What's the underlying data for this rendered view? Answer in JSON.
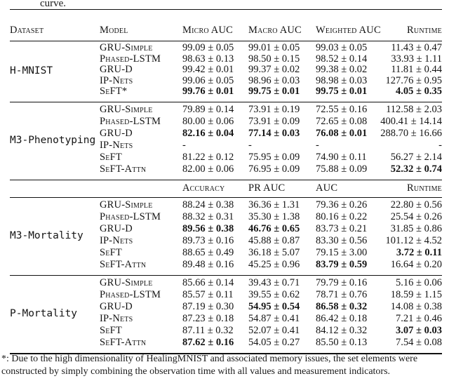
{
  "caption_fragment": "curve.",
  "table": {
    "columns_part1": [
      "Dataset",
      "Model",
      "Micro AUC",
      "Macro AUC",
      "Weighted AUC",
      "Runtime"
    ],
    "columns_part2": [
      "",
      "",
      "Accuracy",
      "PR AUC",
      "AUC",
      "Runtime"
    ],
    "blocks": [
      {
        "dataset": "H-MNIST",
        "rows": [
          {
            "model": "GRU-Simple",
            "values": [
              "99.09 ± 0.05",
              "99.01 ± 0.05",
              "99.03 ± 0.05",
              "11.43 ± 0.47"
            ],
            "bold": []
          },
          {
            "model": "Phased-LSTM",
            "values": [
              "98.63 ± 0.13",
              "98.50 ± 0.15",
              "98.52 ± 0.14",
              "33.93 ± 1.11"
            ],
            "bold": []
          },
          {
            "model": "GRU-D",
            "values": [
              "99.42 ± 0.01",
              "99.37 ± 0.02",
              "99.38 ± 0.02",
              "11.81 ± 0.44"
            ],
            "bold": []
          },
          {
            "model": "IP-Nets",
            "values": [
              "99.06 ± 0.05",
              "98.96 ± 0.03",
              "98.98 ± 0.03",
              "127.76 ± 0.95"
            ],
            "bold": []
          },
          {
            "model": "SeFT*",
            "values": [
              "99.76 ± 0.01",
              "99.75 ± 0.01",
              "99.75 ± 0.01",
              "4.05 ± 0.35"
            ],
            "bold": [
              0,
              1,
              2,
              3
            ]
          }
        ]
      },
      {
        "dataset": "M3-Phenotyping",
        "rows": [
          {
            "model": "GRU-Simple",
            "values": [
              "79.89 ± 0.14",
              "73.91 ± 0.19",
              "72.55 ± 0.16",
              "112.58 ± 2.03"
            ],
            "bold": []
          },
          {
            "model": "Phased-LSTM",
            "values": [
              "80.00 ± 0.06",
              "73.91 ± 0.09",
              "72.65 ± 0.08",
              "400.41 ± 14.14"
            ],
            "bold": []
          },
          {
            "model": "GRU-D",
            "values": [
              "82.16 ± 0.04",
              "77.14 ± 0.03",
              "76.08 ± 0.01",
              "288.70 ± 16.66"
            ],
            "bold": [
              0,
              1,
              2
            ]
          },
          {
            "model": "IP-Nets",
            "values": [
              "-",
              "-",
              "-",
              "-"
            ],
            "bold": []
          },
          {
            "model": "SeFT",
            "values": [
              "81.22 ± 0.12",
              "75.95 ± 0.09",
              "74.90 ± 0.11",
              "56.27 ± 2.14"
            ],
            "bold": []
          },
          {
            "model": "SeFT-Attn",
            "values": [
              "82.00 ± 0.06",
              "76.95 ± 0.09",
              "75.88 ± 0.09",
              "52.32 ± 0.74"
            ],
            "bold": [
              3
            ]
          }
        ]
      },
      {
        "dataset": "M3-Mortality",
        "rows": [
          {
            "model": "GRU-Simple",
            "values": [
              "88.24 ± 0.38",
              "36.36 ± 1.31",
              "79.36 ± 0.26",
              "22.80 ± 0.56"
            ],
            "bold": []
          },
          {
            "model": "Phased-LSTM",
            "values": [
              "88.32 ± 0.31",
              "35.30 ± 1.38",
              "80.16 ± 0.22",
              "25.54 ± 0.26"
            ],
            "bold": []
          },
          {
            "model": "GRU-D",
            "values": [
              "89.56 ± 0.38",
              "46.76 ± 0.65",
              "83.73 ± 0.21",
              "31.85 ± 0.86"
            ],
            "bold": [
              0,
              1
            ]
          },
          {
            "model": "IP-Nets",
            "values": [
              "89.73 ± 0.16",
              "45.88 ± 0.87",
              "83.30 ± 0.56",
              "101.12 ± 4.52"
            ],
            "bold": []
          },
          {
            "model": "SeFT",
            "values": [
              "88.65 ± 0.49",
              "36.18 ± 5.07",
              "79.15 ± 3.00",
              "3.72 ± 0.11"
            ],
            "bold": [
              3
            ]
          },
          {
            "model": "SeFT-Attn",
            "values": [
              "89.48 ± 0.16",
              "45.25 ± 0.96",
              "83.79 ± 0.59",
              "16.64 ± 0.20"
            ],
            "bold": [
              2
            ]
          }
        ]
      },
      {
        "dataset": "P-Mortality",
        "rows": [
          {
            "model": "GRU-Simple",
            "values": [
              "85.66 ± 0.14",
              "39.43 ± 0.71",
              "79.79 ± 0.16",
              "5.16 ± 0.06"
            ],
            "bold": []
          },
          {
            "model": "Phased-LSTM",
            "values": [
              "85.57 ± 0.11",
              "39.55 ± 0.62",
              "78.71 ± 0.76",
              "18.59 ± 1.15"
            ],
            "bold": []
          },
          {
            "model": "GRU-D",
            "values": [
              "87.19 ± 0.30",
              "54.95 ± 0.54",
              "86.58 ± 0.32",
              "14.08 ± 0.38"
            ],
            "bold": [
              1,
              2
            ]
          },
          {
            "model": "IP-Nets",
            "values": [
              "87.23 ± 0.18",
              "54.87 ± 0.41",
              "86.42 ± 0.18",
              "7.21 ± 0.46"
            ],
            "bold": []
          },
          {
            "model": "SeFT",
            "values": [
              "87.11 ± 0.32",
              "52.07 ± 0.41",
              "84.12 ± 0.32",
              "3.07 ± 0.03"
            ],
            "bold": [
              3
            ]
          },
          {
            "model": "SeFT-Attn",
            "values": [
              "87.62 ± 0.16",
              "54.05 ± 0.27",
              "85.50 ± 0.13",
              "7.54 ± 0.08"
            ],
            "bold": [
              0
            ]
          }
        ]
      }
    ]
  },
  "footnote_lines": [
    "*: Due to the high dimensionality of HealingMNIST and associated memory issues, the set elements were",
    "constructed by simply combining the observation time with all values and measurement indicators."
  ]
}
